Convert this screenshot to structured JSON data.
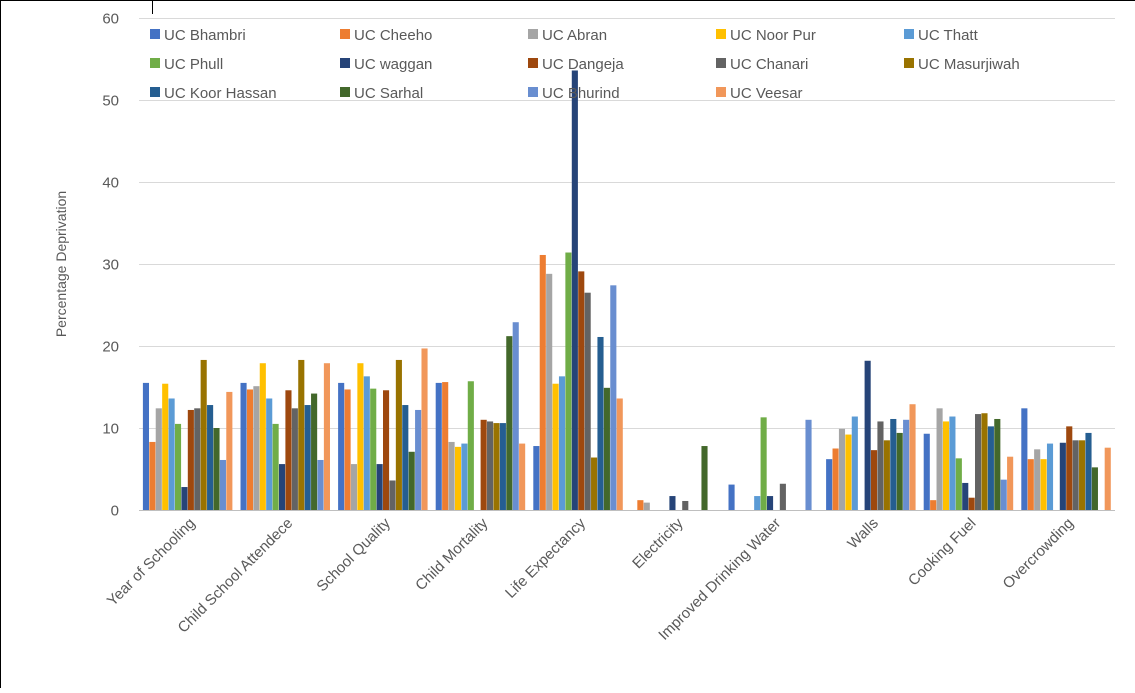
{
  "chart_data": {
    "type": "bar",
    "title": "",
    "xlabel": "",
    "ylabel": "Percentage Deprivation",
    "ylim": [
      0,
      60
    ],
    "yticks": [
      0,
      10,
      20,
      30,
      40,
      50,
      60
    ],
    "grid": "horizontal",
    "legend_position": "top",
    "categories": [
      "Year of Schooling",
      "Child School Attendece",
      "School Quality",
      "Child Mortality",
      "Life Expectancy",
      "Electricity",
      "Improved Drinking Water",
      "Walls",
      "Cooking Fuel",
      "Overcrowding"
    ],
    "series": [
      {
        "name": "UC Bhambri",
        "color": "#4472c4",
        "values": [
          15.5,
          15.5,
          15.5,
          15.5,
          7.8,
          0,
          3.1,
          6.2,
          9.3,
          12.4
        ]
      },
      {
        "name": "UC Cheeho",
        "color": "#ed7d31",
        "values": [
          8.3,
          14.7,
          14.7,
          15.6,
          31.1,
          1.2,
          0,
          7.5,
          1.2,
          6.2
        ]
      },
      {
        "name": "UC Abran",
        "color": "#a5a5a5",
        "values": [
          12.4,
          15.1,
          5.6,
          8.3,
          28.8,
          0.9,
          0,
          9.9,
          12.4,
          7.4
        ]
      },
      {
        "name": "UC Noor Pur",
        "color": "#ffc000",
        "values": [
          15.4,
          17.9,
          17.9,
          7.7,
          15.4,
          0,
          0,
          9.2,
          10.8,
          6.2
        ]
      },
      {
        "name": "UC Thatt",
        "color": "#5b9bd5",
        "values": [
          13.6,
          13.6,
          16.3,
          8.1,
          16.3,
          0,
          1.7,
          11.4,
          11.4,
          8.1
        ]
      },
      {
        "name": "UC Phull",
        "color": "#70ad47",
        "values": [
          10.5,
          10.5,
          14.8,
          15.7,
          31.4,
          0,
          11.3,
          0,
          6.3,
          0
        ]
      },
      {
        "name": "UC waggan",
        "color": "#264478",
        "values": [
          2.8,
          5.6,
          5.6,
          0,
          53.6,
          1.7,
          1.7,
          18.2,
          3.3,
          8.2
        ]
      },
      {
        "name": "UC Dangeja",
        "color": "#9e480e",
        "values": [
          12.2,
          14.6,
          14.6,
          11.0,
          29.1,
          0,
          0,
          7.3,
          1.5,
          10.2
        ]
      },
      {
        "name": "UC Chanari",
        "color": "#636363",
        "values": [
          12.4,
          12.4,
          3.6,
          10.8,
          26.5,
          1.1,
          3.2,
          10.8,
          11.7,
          8.5
        ]
      },
      {
        "name": "UC Masurjiwah",
        "color": "#997300",
        "values": [
          18.3,
          18.3,
          18.3,
          10.6,
          6.4,
          0,
          0,
          8.5,
          11.8,
          8.5
        ]
      },
      {
        "name": "UC Koor Hassan",
        "color": "#255e91",
        "values": [
          12.8,
          12.8,
          12.8,
          10.6,
          21.1,
          0,
          0,
          11.1,
          10.2,
          9.4
        ]
      },
      {
        "name": "UC Sarhal",
        "color": "#43682b",
        "values": [
          10.0,
          14.2,
          7.1,
          21.2,
          14.9,
          7.8,
          0,
          9.4,
          11.1,
          5.2
        ]
      },
      {
        "name": "UC Bhurind",
        "color": "#698ed0",
        "values": [
          6.1,
          6.1,
          12.2,
          22.9,
          27.4,
          0,
          11.0,
          11.0,
          3.7,
          0
        ]
      },
      {
        "name": "UC Veesar",
        "color": "#f1975a",
        "values": [
          14.4,
          17.9,
          19.7,
          8.1,
          13.6,
          0,
          0,
          12.9,
          6.5,
          7.6
        ]
      }
    ]
  }
}
